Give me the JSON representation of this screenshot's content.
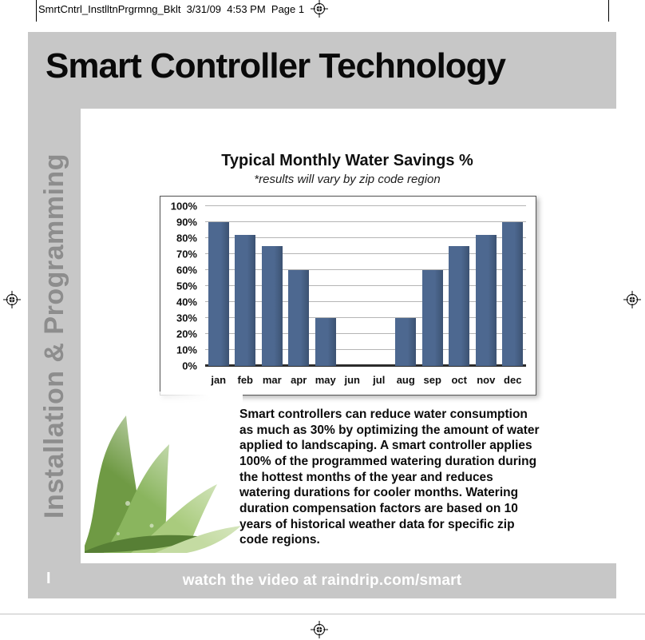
{
  "print_header": {
    "filename_line": "SmrtCntrl_InstlltnPrgrmng_Bklt  3/31/09  4:53 PM  Page 1"
  },
  "page": {
    "title": "Smart Controller Technology",
    "sidebar_label": "Installation & Programming"
  },
  "chart_data": {
    "type": "bar",
    "title": "Typical Monthly Water Savings %",
    "subtitle": "*results will vary by zip code region",
    "categories": [
      "jan",
      "feb",
      "mar",
      "apr",
      "may",
      "jun",
      "jul",
      "aug",
      "sep",
      "oct",
      "nov",
      "dec"
    ],
    "values": [
      90,
      82,
      75,
      60,
      30,
      0,
      0,
      30,
      60,
      75,
      82,
      90
    ],
    "yticks": [
      "100%",
      "90%",
      "80%",
      "70%",
      "60%",
      "50%",
      "40%",
      "30%",
      "20%",
      "10%",
      "0%"
    ],
    "ylim": [
      0,
      100
    ],
    "grid": true,
    "legend": "none",
    "bar_color": "#4d6890",
    "xlabel": "",
    "ylabel": ""
  },
  "body": {
    "paragraph": "Smart controllers can reduce water consumption as much as 30% by optimizing the amount of water applied to landscaping. A smart controller applies 100% of the programmed watering duration during the hottest months of the year and reduces watering durations for cooler months. Watering duration compensation factors are based on 10 years of historical weather data for specific zip code regions."
  },
  "footer": {
    "page_marker": "I",
    "text": "watch the video at raindrip.com/smart"
  },
  "colors": {
    "band_gray": "#c7c7c7",
    "sidebar_text": "#8d8d8d",
    "bar": "#4d6890"
  }
}
